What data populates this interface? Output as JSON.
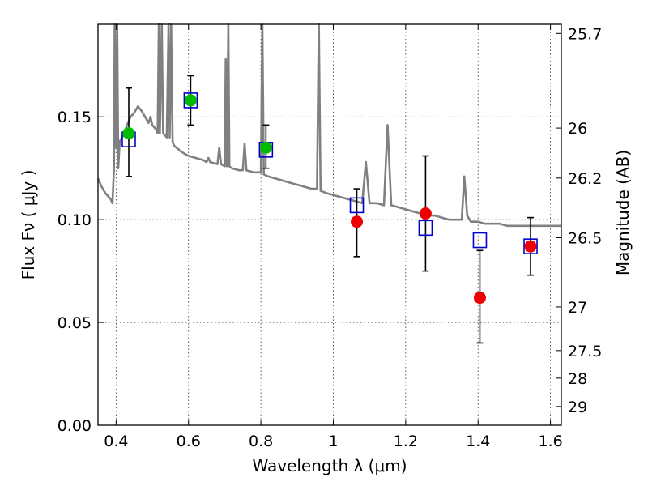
{
  "chart_data": {
    "type": "scatter",
    "xlabel": "Wavelength  λ (μm)",
    "ylabel": "Flux  Fν  ( μJy )",
    "y2label": "Magnitude (AB)",
    "xlim": [
      0.35,
      1.63
    ],
    "ylim": [
      0.0,
      0.195
    ],
    "grid": true,
    "x_ticks": [
      0.4,
      0.6,
      0.8,
      1.0,
      1.2,
      1.4,
      1.6
    ],
    "x_tick_labels": [
      "0.4",
      "0.6",
      "0.8",
      "1",
      "1.2",
      "1.4",
      "1.6"
    ],
    "y_ticks": [
      0.0,
      0.05,
      0.1,
      0.15
    ],
    "y_tick_labels": [
      "0.00",
      "0.05",
      "0.10",
      "0.15"
    ],
    "y2_ticks": [
      {
        "label": "25.7",
        "mag": 25.7
      },
      {
        "label": "26",
        "mag": 26.0
      },
      {
        "label": "26.2",
        "mag": 26.2
      },
      {
        "label": "26.5",
        "mag": 26.5
      },
      {
        "label": "27",
        "mag": 27.0
      },
      {
        "label": "27.5",
        "mag": 27.5
      },
      {
        "label": "28",
        "mag": 28.0
      },
      {
        "label": "29",
        "mag": 29.0
      }
    ],
    "colors": {
      "optical_points": "#00bb00",
      "nir_points": "#ee0000",
      "model_boxes": "#0000cc",
      "model_spectrum": "#808080",
      "error_bars": "#000000"
    },
    "observed_points": [
      {
        "x": 0.435,
        "y": 0.142,
        "yerr_low": 0.121,
        "yerr_high": 0.164,
        "band": "optical"
      },
      {
        "x": 0.606,
        "y": 0.158,
        "yerr_low": 0.146,
        "yerr_high": 0.17,
        "band": "optical"
      },
      {
        "x": 0.814,
        "y": 0.135,
        "yerr_low": 0.125,
        "yerr_high": 0.146,
        "band": "optical"
      },
      {
        "x": 1.065,
        "y": 0.099,
        "yerr_low": 0.082,
        "yerr_high": 0.115,
        "band": "nir"
      },
      {
        "x": 1.255,
        "y": 0.103,
        "yerr_low": 0.075,
        "yerr_high": 0.131,
        "band": "nir"
      },
      {
        "x": 1.405,
        "y": 0.062,
        "yerr_low": 0.04,
        "yerr_high": 0.085,
        "band": "nir"
      },
      {
        "x": 1.545,
        "y": 0.087,
        "yerr_low": 0.073,
        "yerr_high": 0.101,
        "band": "nir"
      }
    ],
    "model_fluxes": [
      {
        "x": 0.435,
        "y": 0.139
      },
      {
        "x": 0.606,
        "y": 0.158
      },
      {
        "x": 0.814,
        "y": 0.134
      },
      {
        "x": 1.065,
        "y": 0.107
      },
      {
        "x": 1.255,
        "y": 0.096
      },
      {
        "x": 1.405,
        "y": 0.09
      },
      {
        "x": 1.545,
        "y": 0.087
      }
    ],
    "model_spectrum": [
      [
        0.35,
        0.12
      ],
      [
        0.36,
        0.116
      ],
      [
        0.37,
        0.113
      ],
      [
        0.38,
        0.111
      ],
      [
        0.385,
        0.11
      ],
      [
        0.39,
        0.108
      ],
      [
        0.394,
        0.125
      ],
      [
        0.396,
        0.195
      ],
      [
        0.4,
        0.135
      ],
      [
        0.403,
        0.195
      ],
      [
        0.406,
        0.125
      ],
      [
        0.41,
        0.138
      ],
      [
        0.42,
        0.141
      ],
      [
        0.43,
        0.146
      ],
      [
        0.44,
        0.15
      ],
      [
        0.45,
        0.152
      ],
      [
        0.46,
        0.155
      ],
      [
        0.47,
        0.153
      ],
      [
        0.48,
        0.15
      ],
      [
        0.49,
        0.147
      ],
      [
        0.495,
        0.15
      ],
      [
        0.5,
        0.146
      ],
      [
        0.51,
        0.144
      ],
      [
        0.515,
        0.142
      ],
      [
        0.518,
        0.195
      ],
      [
        0.521,
        0.142
      ],
      [
        0.526,
        0.195
      ],
      [
        0.53,
        0.142
      ],
      [
        0.54,
        0.14
      ],
      [
        0.545,
        0.195
      ],
      [
        0.548,
        0.14
      ],
      [
        0.552,
        0.195
      ],
      [
        0.556,
        0.138
      ],
      [
        0.56,
        0.136
      ],
      [
        0.58,
        0.133
      ],
      [
        0.6,
        0.131
      ],
      [
        0.62,
        0.13
      ],
      [
        0.64,
        0.129
      ],
      [
        0.65,
        0.128
      ],
      [
        0.655,
        0.13
      ],
      [
        0.66,
        0.128
      ],
      [
        0.68,
        0.127
      ],
      [
        0.685,
        0.135
      ],
      [
        0.69,
        0.127
      ],
      [
        0.7,
        0.126
      ],
      [
        0.703,
        0.178
      ],
      [
        0.706,
        0.126
      ],
      [
        0.71,
        0.195
      ],
      [
        0.713,
        0.126
      ],
      [
        0.72,
        0.125
      ],
      [
        0.74,
        0.124
      ],
      [
        0.75,
        0.124
      ],
      [
        0.755,
        0.137
      ],
      [
        0.76,
        0.124
      ],
      [
        0.78,
        0.123
      ],
      [
        0.8,
        0.123
      ],
      [
        0.804,
        0.195
      ],
      [
        0.808,
        0.122
      ],
      [
        0.82,
        0.121
      ],
      [
        0.84,
        0.12
      ],
      [
        0.86,
        0.119
      ],
      [
        0.88,
        0.118
      ],
      [
        0.9,
        0.117
      ],
      [
        0.92,
        0.116
      ],
      [
        0.94,
        0.115
      ],
      [
        0.955,
        0.115
      ],
      [
        0.96,
        0.195
      ],
      [
        0.965,
        0.114
      ],
      [
        0.98,
        0.113
      ],
      [
        1.0,
        0.112
      ],
      [
        1.02,
        0.111
      ],
      [
        1.04,
        0.11
      ],
      [
        1.06,
        0.109
      ],
      [
        1.08,
        0.108
      ],
      [
        1.09,
        0.128
      ],
      [
        1.1,
        0.108
      ],
      [
        1.12,
        0.108
      ],
      [
        1.14,
        0.107
      ],
      [
        1.15,
        0.146
      ],
      [
        1.16,
        0.107
      ],
      [
        1.18,
        0.106
      ],
      [
        1.2,
        0.105
      ],
      [
        1.22,
        0.104
      ],
      [
        1.24,
        0.103
      ],
      [
        1.26,
        0.102
      ],
      [
        1.28,
        0.102
      ],
      [
        1.3,
        0.101
      ],
      [
        1.32,
        0.1
      ],
      [
        1.34,
        0.1
      ],
      [
        1.355,
        0.1
      ],
      [
        1.362,
        0.121
      ],
      [
        1.37,
        0.102
      ],
      [
        1.38,
        0.099
      ],
      [
        1.4,
        0.099
      ],
      [
        1.42,
        0.098
      ],
      [
        1.44,
        0.098
      ],
      [
        1.46,
        0.098
      ],
      [
        1.48,
        0.097
      ],
      [
        1.5,
        0.097
      ],
      [
        1.52,
        0.097
      ],
      [
        1.54,
        0.097
      ],
      [
        1.56,
        0.097
      ],
      [
        1.58,
        0.097
      ],
      [
        1.6,
        0.097
      ],
      [
        1.63,
        0.097
      ]
    ]
  }
}
